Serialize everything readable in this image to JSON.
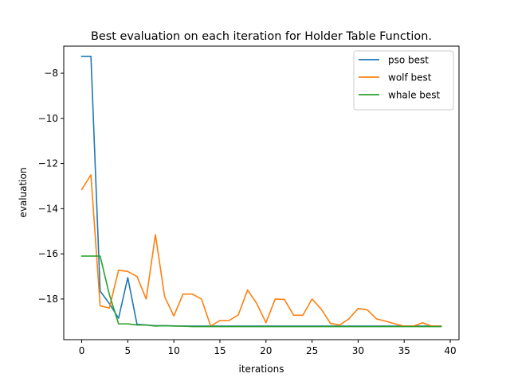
{
  "chart_data": {
    "type": "line",
    "title": "Best evaluation on each iteration for Holder Table Function.",
    "xlabel": "iterations",
    "ylabel": "evaluation",
    "xlim": [
      -1.95,
      40.95
    ],
    "ylim": [
      -19.8,
      -6.8
    ],
    "xticks": [
      0,
      5,
      10,
      15,
      20,
      25,
      30,
      35,
      40
    ],
    "yticks": [
      -18,
      -16,
      -14,
      -12,
      -10,
      -8
    ],
    "xtick_labels": [
      "0",
      "5",
      "10",
      "15",
      "20",
      "25",
      "30",
      "35",
      "40"
    ],
    "ytick_labels": [
      "−18",
      "−16",
      "−14",
      "−12",
      "−10",
      "−8"
    ],
    "legend_position": "top-right",
    "grid": false,
    "x": [
      0,
      1,
      2,
      3,
      4,
      5,
      6,
      7,
      8,
      9,
      10,
      11,
      12,
      13,
      14,
      15,
      16,
      17,
      18,
      19,
      20,
      21,
      22,
      23,
      24,
      25,
      26,
      27,
      28,
      29,
      30,
      31,
      32,
      33,
      34,
      35,
      36,
      37,
      38,
      39
    ],
    "series": [
      {
        "name": "pso best",
        "color": "#1f77b4",
        "values": [
          -7.25,
          -7.25,
          -17.65,
          -18.2,
          -18.85,
          -17.05,
          -19.12,
          -19.15,
          -19.18,
          -19.18,
          -19.19,
          -19.2,
          -19.2,
          -19.2,
          -19.2,
          -19.2,
          -19.2,
          -19.2,
          -19.2,
          -19.2,
          -19.2,
          -19.2,
          -19.2,
          -19.2,
          -19.2,
          -19.2,
          -19.2,
          -19.2,
          -19.2,
          -19.2,
          -19.2,
          -19.2,
          -19.2,
          -19.2,
          -19.2,
          -19.2,
          -19.2,
          -19.2,
          -19.2,
          -19.2
        ]
      },
      {
        "name": "wolf best",
        "color": "#ff7f0e",
        "values": [
          -13.15,
          -12.5,
          -18.3,
          -18.4,
          -16.72,
          -16.78,
          -17.0,
          -18.0,
          -15.15,
          -17.9,
          -18.75,
          -17.78,
          -17.78,
          -18.0,
          -19.2,
          -18.95,
          -18.95,
          -18.7,
          -17.6,
          -18.2,
          -19.05,
          -18.0,
          -18.02,
          -18.72,
          -18.72,
          -18.0,
          -18.45,
          -19.08,
          -19.15,
          -18.88,
          -18.42,
          -18.48,
          -18.88,
          -18.98,
          -19.1,
          -19.2,
          -19.2,
          -19.05,
          -19.2,
          -19.2
        ]
      },
      {
        "name": "whale best",
        "color": "#2ca02c",
        "values": [
          -16.1,
          -16.1,
          -16.1,
          -17.8,
          -19.1,
          -19.1,
          -19.15,
          -19.15,
          -19.2,
          -19.18,
          -19.2,
          -19.2,
          -19.22,
          -19.22,
          -19.22,
          -19.22,
          -19.22,
          -19.22,
          -19.22,
          -19.22,
          -19.22,
          -19.22,
          -19.22,
          -19.22,
          -19.22,
          -19.22,
          -19.22,
          -19.22,
          -19.22,
          -19.22,
          -19.22,
          -19.22,
          -19.22,
          -19.22,
          -19.22,
          -19.22,
          -19.22,
          -19.22,
          -19.22,
          -19.22
        ]
      }
    ]
  }
}
